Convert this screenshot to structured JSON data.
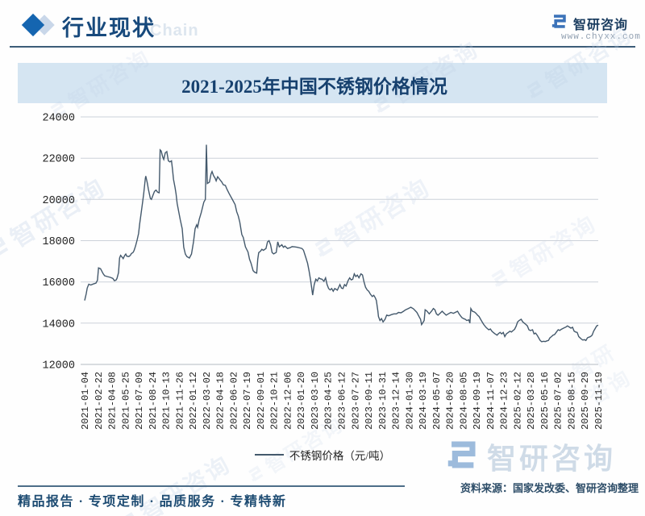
{
  "header": {
    "section_title": "行业现状",
    "watermark_chain": "Chain",
    "logo_text": "智研咨询",
    "logo_url": "www.chyxx.com"
  },
  "chart_data": {
    "type": "line",
    "title": "2021-2025年中国不锈钢价格情况",
    "legend_label": "不锈钢价格（元/吨）",
    "ylim": [
      12000,
      24000
    ],
    "y_ticks": [
      24000,
      22000,
      20000,
      18000,
      16000,
      14000,
      12000
    ],
    "grid": "horizontal",
    "legend_position": "bottom-center",
    "line_color": "#44596c",
    "x_tick_labels": [
      "2021-01-04",
      "2021-02-22",
      "2021-04-08",
      "2021-05-25",
      "2021-07-09",
      "2021-08-24",
      "2021-10-13",
      "2021-11-26",
      "2022-01-12",
      "2022-03-02",
      "2022-04-18",
      "2022-06-02",
      "2022-07-19",
      "2022-09-01",
      "2022-10-21",
      "2022-12-06",
      "2023-01-20",
      "2023-03-10",
      "2023-04-25",
      "2023-06-12",
      "2023-07-27",
      "2023-09-11",
      "2023-10-31",
      "2023-12-14",
      "2024-01-30",
      "2024-03-19",
      "2024-05-07",
      "2024-06-20",
      "2024-08-05",
      "2024-09-19",
      "2024-11-07",
      "2024-12-23",
      "2025-02-12",
      "2025-03-28",
      "2025-05-16",
      "2025-07-02",
      "2025-08-15",
      "2025-09-29",
      "2025-11-19"
    ],
    "x_encoding": "fraction of time axis (2021-01-04 to 2025-12)",
    "points": [
      [
        0.0,
        15100
      ],
      [
        0.003,
        15420
      ],
      [
        0.005,
        15700
      ],
      [
        0.008,
        15890
      ],
      [
        0.012,
        15850
      ],
      [
        0.017,
        15900
      ],
      [
        0.022,
        15940
      ],
      [
        0.025,
        16080
      ],
      [
        0.027,
        16680
      ],
      [
        0.031,
        16640
      ],
      [
        0.036,
        16400
      ],
      [
        0.039,
        16300
      ],
      [
        0.044,
        16260
      ],
      [
        0.05,
        16220
      ],
      [
        0.055,
        16170
      ],
      [
        0.058,
        16060
      ],
      [
        0.061,
        16090
      ],
      [
        0.063,
        16170
      ],
      [
        0.066,
        16450
      ],
      [
        0.068,
        17160
      ],
      [
        0.07,
        17290
      ],
      [
        0.072,
        17230
      ],
      [
        0.075,
        17130
      ],
      [
        0.078,
        17290
      ],
      [
        0.08,
        17350
      ],
      [
        0.082,
        17250
      ],
      [
        0.086,
        17230
      ],
      [
        0.089,
        17290
      ],
      [
        0.091,
        17380
      ],
      [
        0.094,
        17420
      ],
      [
        0.096,
        17510
      ],
      [
        0.099,
        17740
      ],
      [
        0.102,
        18020
      ],
      [
        0.105,
        18350
      ],
      [
        0.107,
        18800
      ],
      [
        0.11,
        19350
      ],
      [
        0.113,
        19900
      ],
      [
        0.115,
        20300
      ],
      [
        0.118,
        21000
      ],
      [
        0.119,
        21130
      ],
      [
        0.122,
        20800
      ],
      [
        0.124,
        20500
      ],
      [
        0.126,
        20260
      ],
      [
        0.128,
        20050
      ],
      [
        0.13,
        20000
      ],
      [
        0.133,
        20200
      ],
      [
        0.136,
        20390
      ],
      [
        0.139,
        20450
      ],
      [
        0.142,
        20350
      ],
      [
        0.145,
        20320
      ],
      [
        0.147,
        22400
      ],
      [
        0.149,
        22350
      ],
      [
        0.152,
        22060
      ],
      [
        0.154,
        21940
      ],
      [
        0.157,
        22260
      ],
      [
        0.16,
        22320
      ],
      [
        0.163,
        21870
      ],
      [
        0.166,
        21820
      ],
      [
        0.169,
        21870
      ],
      [
        0.171,
        21480
      ],
      [
        0.173,
        20970
      ],
      [
        0.176,
        20580
      ],
      [
        0.178,
        20260
      ],
      [
        0.18,
        19810
      ],
      [
        0.183,
        19420
      ],
      [
        0.186,
        19030
      ],
      [
        0.19,
        18580
      ],
      [
        0.193,
        17680
      ],
      [
        0.196,
        17350
      ],
      [
        0.199,
        17230
      ],
      [
        0.204,
        17160
      ],
      [
        0.208,
        17350
      ],
      [
        0.212,
        17940
      ],
      [
        0.215,
        18580
      ],
      [
        0.218,
        18770
      ],
      [
        0.22,
        18650
      ],
      [
        0.223,
        19030
      ],
      [
        0.227,
        19360
      ],
      [
        0.232,
        19870
      ],
      [
        0.235,
        20000
      ],
      [
        0.237,
        22650
      ],
      [
        0.239,
        20770
      ],
      [
        0.243,
        20840
      ],
      [
        0.246,
        21230
      ],
      [
        0.248,
        21350
      ],
      [
        0.251,
        21150
      ],
      [
        0.254,
        21030
      ],
      [
        0.256,
        20900
      ],
      [
        0.259,
        21100
      ],
      [
        0.263,
        20970
      ],
      [
        0.267,
        20840
      ],
      [
        0.27,
        20710
      ],
      [
        0.274,
        20680
      ],
      [
        0.277,
        20500
      ],
      [
        0.281,
        20300
      ],
      [
        0.284,
        20160
      ],
      [
        0.287,
        20030
      ],
      [
        0.293,
        19750
      ],
      [
        0.296,
        19400
      ],
      [
        0.299,
        19200
      ],
      [
        0.302,
        18900
      ],
      [
        0.306,
        18300
      ],
      [
        0.309,
        18150
      ],
      [
        0.313,
        17700
      ],
      [
        0.318,
        17450
      ],
      [
        0.321,
        17100
      ],
      [
        0.324,
        16900
      ],
      [
        0.328,
        16550
      ],
      [
        0.331,
        16470
      ],
      [
        0.335,
        16430
      ],
      [
        0.337,
        17100
      ],
      [
        0.339,
        17420
      ],
      [
        0.342,
        17480
      ],
      [
        0.345,
        17580
      ],
      [
        0.348,
        17530
      ],
      [
        0.353,
        17620
      ],
      [
        0.356,
        17940
      ],
      [
        0.359,
        18000
      ],
      [
        0.362,
        17800
      ],
      [
        0.365,
        17420
      ],
      [
        0.368,
        17360
      ],
      [
        0.373,
        17430
      ],
      [
        0.376,
        17940
      ],
      [
        0.379,
        17700
      ],
      [
        0.384,
        17800
      ],
      [
        0.387,
        17680
      ],
      [
        0.39,
        17740
      ],
      [
        0.395,
        17620
      ],
      [
        0.4,
        17660
      ],
      [
        0.404,
        17710
      ],
      [
        0.409,
        17700
      ],
      [
        0.414,
        17680
      ],
      [
        0.419,
        17650
      ],
      [
        0.423,
        17620
      ],
      [
        0.426,
        17540
      ],
      [
        0.431,
        17160
      ],
      [
        0.434,
        16900
      ],
      [
        0.437,
        16520
      ],
      [
        0.44,
        16070
      ],
      [
        0.444,
        15360
      ],
      [
        0.447,
        15870
      ],
      [
        0.45,
        16130
      ],
      [
        0.453,
        16050
      ],
      [
        0.456,
        16200
      ],
      [
        0.459,
        16150
      ],
      [
        0.462,
        16130
      ],
      [
        0.466,
        16030
      ],
      [
        0.469,
        16200
      ],
      [
        0.472,
        15870
      ],
      [
        0.475,
        15680
      ],
      [
        0.478,
        15610
      ],
      [
        0.481,
        15680
      ],
      [
        0.484,
        15550
      ],
      [
        0.487,
        15680
      ],
      [
        0.492,
        15600
      ],
      [
        0.497,
        15870
      ],
      [
        0.5,
        15700
      ],
      [
        0.503,
        15680
      ],
      [
        0.506,
        15870
      ],
      [
        0.509,
        15800
      ],
      [
        0.513,
        16070
      ],
      [
        0.516,
        16200
      ],
      [
        0.519,
        16100
      ],
      [
        0.522,
        16130
      ],
      [
        0.525,
        16390
      ],
      [
        0.528,
        16260
      ],
      [
        0.531,
        16330
      ],
      [
        0.534,
        16200
      ],
      [
        0.538,
        16390
      ],
      [
        0.541,
        16340
      ],
      [
        0.544,
        16000
      ],
      [
        0.547,
        15740
      ],
      [
        0.55,
        15610
      ],
      [
        0.553,
        15550
      ],
      [
        0.556,
        15420
      ],
      [
        0.56,
        15290
      ],
      [
        0.563,
        15350
      ],
      [
        0.566,
        15230
      ],
      [
        0.568,
        15100
      ],
      [
        0.571,
        14580
      ],
      [
        0.572,
        14320
      ],
      [
        0.575,
        14130
      ],
      [
        0.578,
        14220
      ],
      [
        0.581,
        14060
      ],
      [
        0.585,
        14190
      ],
      [
        0.588,
        14390
      ],
      [
        0.592,
        14360
      ],
      [
        0.597,
        14410
      ],
      [
        0.602,
        14450
      ],
      [
        0.607,
        14450
      ],
      [
        0.611,
        14520
      ],
      [
        0.616,
        14500
      ],
      [
        0.621,
        14580
      ],
      [
        0.625,
        14650
      ],
      [
        0.63,
        14710
      ],
      [
        0.635,
        14770
      ],
      [
        0.64,
        14700
      ],
      [
        0.644,
        14600
      ],
      [
        0.647,
        14520
      ],
      [
        0.651,
        14320
      ],
      [
        0.654,
        14190
      ],
      [
        0.656,
        13930
      ],
      [
        0.658,
        14000
      ],
      [
        0.661,
        14130
      ],
      [
        0.663,
        14650
      ],
      [
        0.666,
        14600
      ],
      [
        0.671,
        14450
      ],
      [
        0.676,
        14600
      ],
      [
        0.679,
        14710
      ],
      [
        0.682,
        14650
      ],
      [
        0.685,
        14450
      ],
      [
        0.688,
        14390
      ],
      [
        0.693,
        14500
      ],
      [
        0.696,
        14580
      ],
      [
        0.699,
        14500
      ],
      [
        0.704,
        14390
      ],
      [
        0.708,
        14450
      ],
      [
        0.713,
        14520
      ],
      [
        0.718,
        14480
      ],
      [
        0.723,
        14540
      ],
      [
        0.726,
        14580
      ],
      [
        0.729,
        14450
      ],
      [
        0.732,
        14350
      ],
      [
        0.735,
        14260
      ],
      [
        0.738,
        14220
      ],
      [
        0.741,
        14190
      ],
      [
        0.744,
        14130
      ],
      [
        0.748,
        14160
      ],
      [
        0.75,
        14000
      ],
      [
        0.752,
        14710
      ],
      [
        0.755,
        14580
      ],
      [
        0.759,
        14540
      ],
      [
        0.762,
        14480
      ],
      [
        0.765,
        14390
      ],
      [
        0.768,
        14320
      ],
      [
        0.771,
        14190
      ],
      [
        0.774,
        14060
      ],
      [
        0.777,
        13940
      ],
      [
        0.781,
        13810
      ],
      [
        0.784,
        13740
      ],
      [
        0.787,
        13680
      ],
      [
        0.79,
        13720
      ],
      [
        0.793,
        13610
      ],
      [
        0.796,
        13540
      ],
      [
        0.799,
        13480
      ],
      [
        0.803,
        13420
      ],
      [
        0.806,
        13500
      ],
      [
        0.809,
        13550
      ],
      [
        0.812,
        13480
      ],
      [
        0.815,
        13550
      ],
      [
        0.818,
        13350
      ],
      [
        0.821,
        13480
      ],
      [
        0.825,
        13550
      ],
      [
        0.828,
        13610
      ],
      [
        0.831,
        13570
      ],
      [
        0.834,
        13640
      ],
      [
        0.837,
        13700
      ],
      [
        0.84,
        13850
      ],
      [
        0.843,
        14060
      ],
      [
        0.846,
        14130
      ],
      [
        0.85,
        14190
      ],
      [
        0.853,
        14060
      ],
      [
        0.856,
        14000
      ],
      [
        0.859,
        13940
      ],
      [
        0.862,
        13870
      ],
      [
        0.865,
        13680
      ],
      [
        0.868,
        13640
      ],
      [
        0.872,
        13680
      ],
      [
        0.875,
        13480
      ],
      [
        0.878,
        13520
      ],
      [
        0.881,
        13420
      ],
      [
        0.884,
        13290
      ],
      [
        0.887,
        13160
      ],
      [
        0.89,
        13100
      ],
      [
        0.893,
        13120
      ],
      [
        0.897,
        13110
      ],
      [
        0.9,
        13140
      ],
      [
        0.903,
        13160
      ],
      [
        0.906,
        13290
      ],
      [
        0.909,
        13350
      ],
      [
        0.912,
        13420
      ],
      [
        0.915,
        13450
      ],
      [
        0.918,
        13550
      ],
      [
        0.922,
        13680
      ],
      [
        0.925,
        13650
      ],
      [
        0.928,
        13700
      ],
      [
        0.931,
        13740
      ],
      [
        0.934,
        13780
      ],
      [
        0.937,
        13810
      ],
      [
        0.94,
        13870
      ],
      [
        0.943,
        13820
      ],
      [
        0.947,
        13760
      ],
      [
        0.95,
        13800
      ],
      [
        0.953,
        13610
      ],
      [
        0.956,
        13570
      ],
      [
        0.959,
        13550
      ],
      [
        0.962,
        13350
      ],
      [
        0.964,
        13300
      ],
      [
        0.967,
        13230
      ],
      [
        0.97,
        13180
      ],
      [
        0.973,
        13200
      ],
      [
        0.976,
        13160
      ],
      [
        0.979,
        13290
      ],
      [
        0.982,
        13320
      ],
      [
        0.985,
        13350
      ],
      [
        0.988,
        13420
      ],
      [
        0.991,
        13610
      ],
      [
        0.994,
        13740
      ],
      [
        0.997,
        13870
      ],
      [
        1.0,
        13900
      ]
    ]
  },
  "footer": {
    "source": "资料来源：国家发改委、智研咨询整理",
    "tagline": "精品报告 · 专项定制 · 品质服务 · 专精特新",
    "watermark_logo_text": "智研咨询"
  },
  "colors": {
    "accent_navy": "#17497c",
    "band_blue": "#d5e5f2",
    "line": "#44596c",
    "logo_blue": "#3c73b9",
    "watermark_blue": "#bfd0e6",
    "gridline": "#ccd1d9"
  }
}
